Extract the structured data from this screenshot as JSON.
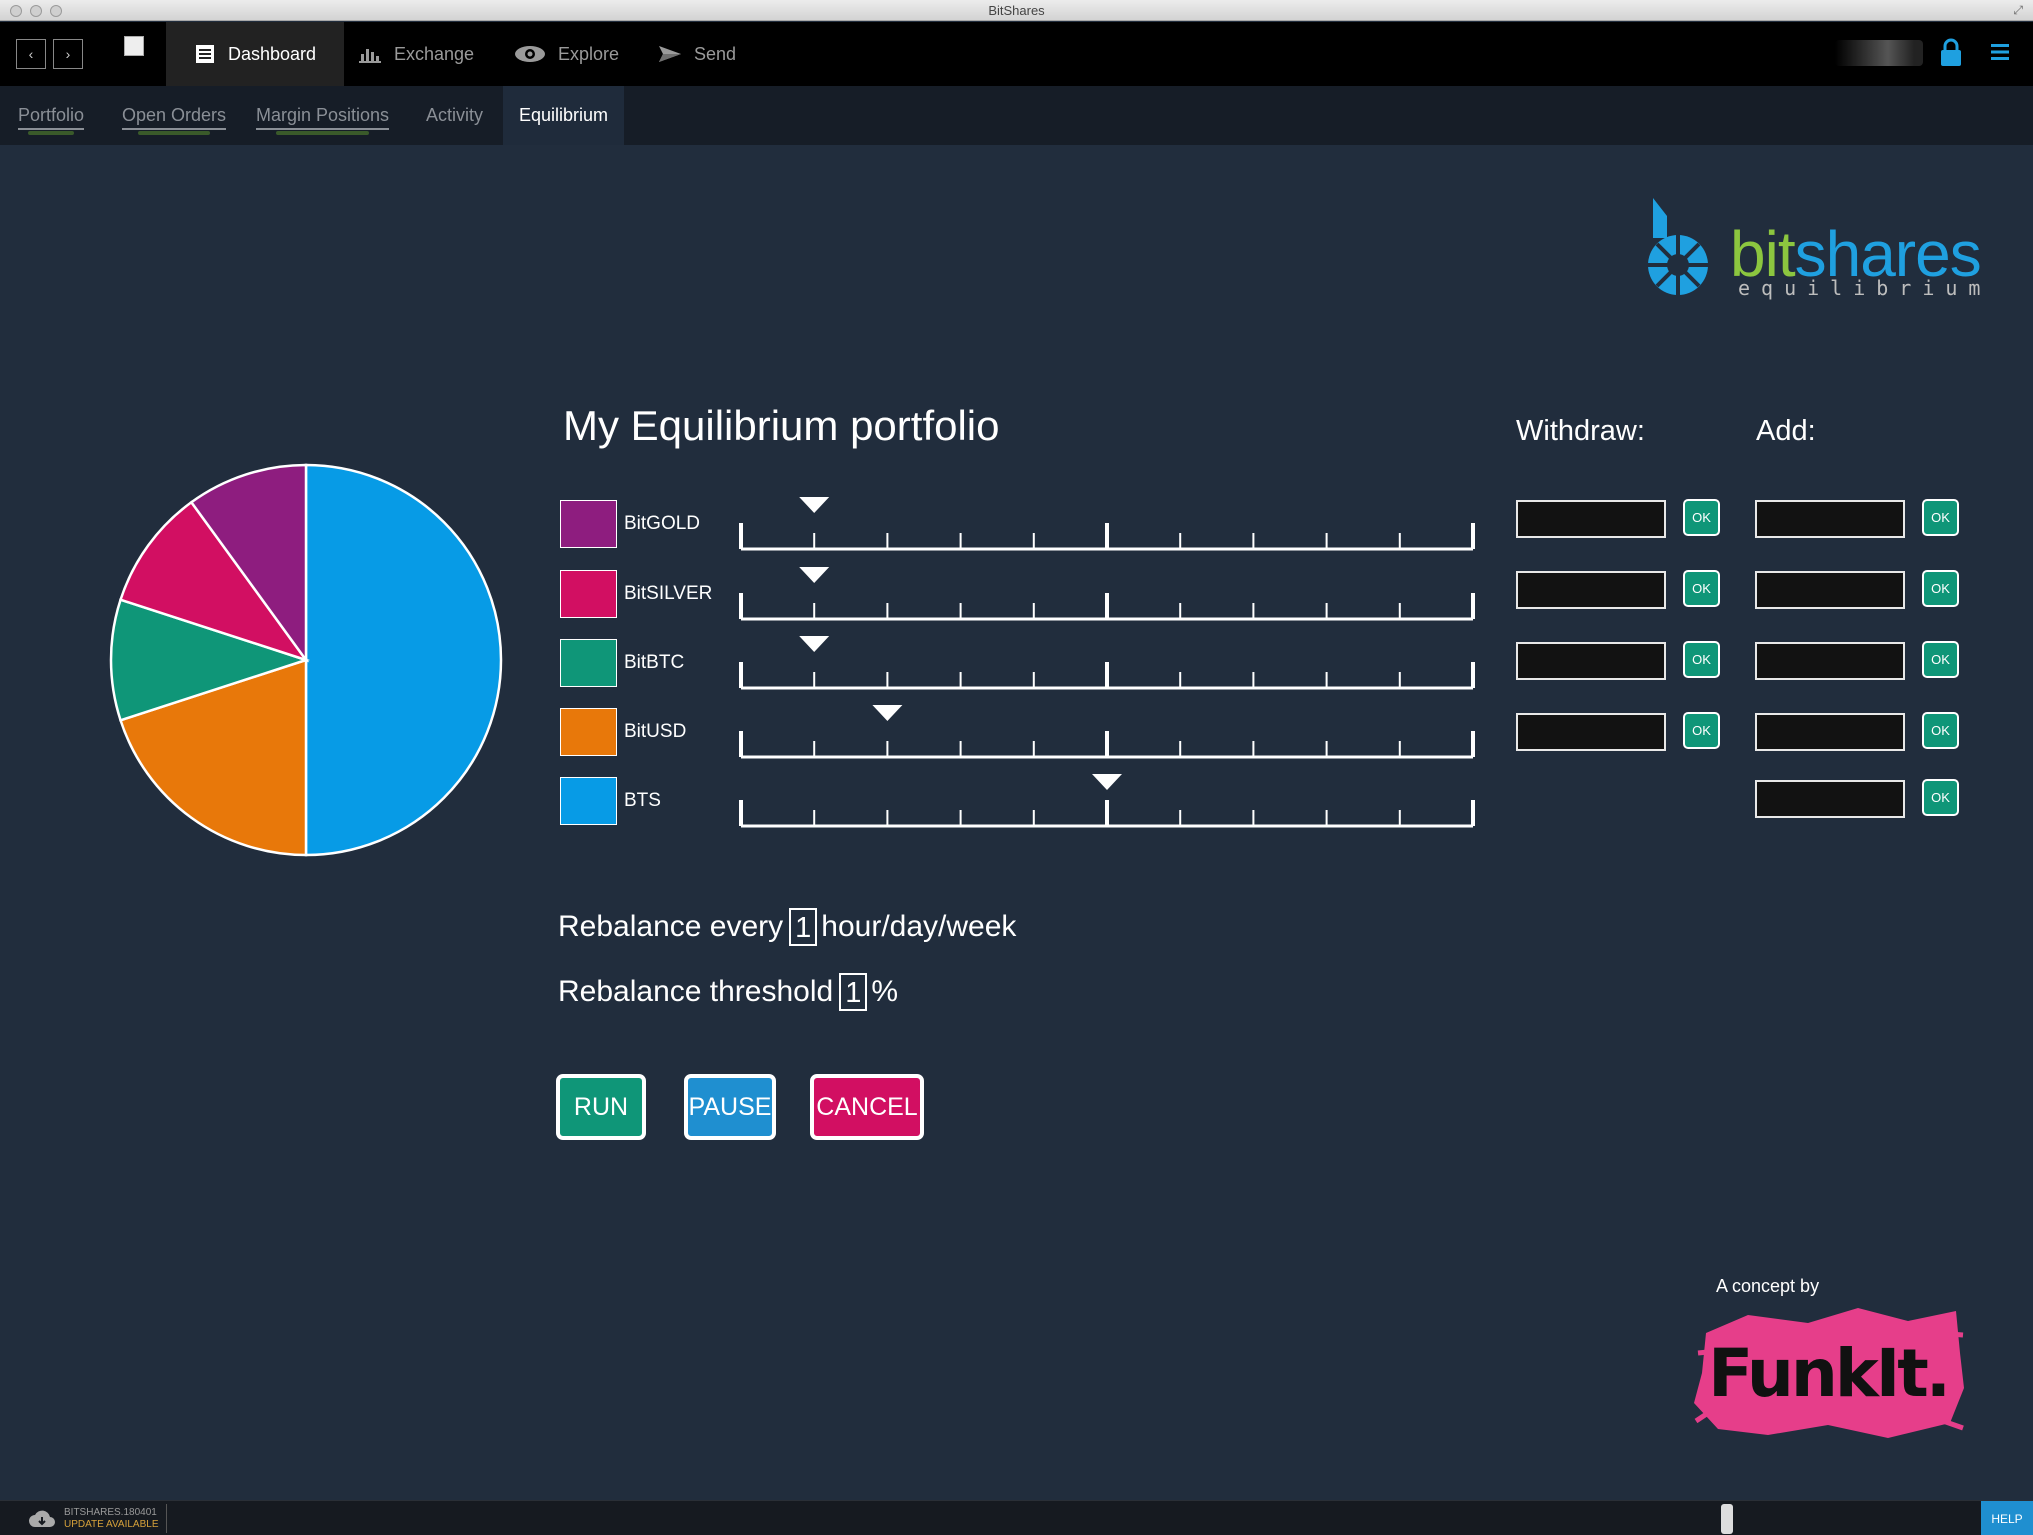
{
  "window": {
    "title": "BitShares"
  },
  "topnav": {
    "back_icon": "chevron-left-icon",
    "forward_icon": "chevron-right-icon",
    "back_label": "‹",
    "forward_label": "›",
    "tabs": [
      {
        "label": "Dashboard",
        "icon": "dashboard-icon",
        "active": true
      },
      {
        "label": "Exchange",
        "icon": "bar-chart-icon",
        "active": false
      },
      {
        "label": "Explore",
        "icon": "eye-icon",
        "active": false
      },
      {
        "label": "Send",
        "icon": "paper-plane-icon",
        "active": false
      }
    ],
    "lock_icon": "lock-icon",
    "menu_icon": "hamburger-menu-icon"
  },
  "subnav": {
    "tabs": [
      {
        "label": "Portfolio",
        "active": false
      },
      {
        "label": "Open Orders",
        "active": false
      },
      {
        "label": "Margin Positions",
        "active": false
      },
      {
        "label": "Activity",
        "active": false
      },
      {
        "label": "Equilibrium",
        "active": true
      }
    ]
  },
  "logo": {
    "brand_bit": "bit",
    "brand_shares": "shares",
    "tagline": "equilibrium"
  },
  "portfolio": {
    "title": "My Equilibrium portfolio",
    "withdraw_label": "Withdraw:",
    "add_label": "Add:",
    "ok_label": "OK",
    "assets": [
      {
        "name": "BitGOLD",
        "color": "#8e1d7f",
        "slider_value": 1,
        "withdraw": "",
        "add": "",
        "can_withdraw": true
      },
      {
        "name": "BitSILVER",
        "color": "#d20f62",
        "slider_value": 1,
        "withdraw": "",
        "add": "",
        "can_withdraw": true
      },
      {
        "name": "BitBTC",
        "color": "#0f9678",
        "slider_value": 1,
        "withdraw": "",
        "add": "",
        "can_withdraw": true
      },
      {
        "name": "BitUSD",
        "color": "#e8780a",
        "slider_value": 2,
        "withdraw": "",
        "add": "",
        "can_withdraw": true
      },
      {
        "name": "BTS",
        "color": "#079be6",
        "slider_value": 5,
        "withdraw": "",
        "add": "",
        "can_withdraw": false
      }
    ],
    "slider_ticks": 10
  },
  "rebalance": {
    "every_prefix": "Rebalance every",
    "every_value": "1",
    "every_suffix": "hour/day/week",
    "threshold_prefix": "Rebalance threshold",
    "threshold_value": "1",
    "threshold_suffix": "%"
  },
  "actions": {
    "run": {
      "label": "RUN",
      "color": "#0f9678"
    },
    "pause": {
      "label": "PAUSE",
      "color": "#1f8fd0"
    },
    "cancel": {
      "label": "CANCEL",
      "color": "#d20f62"
    }
  },
  "credit": {
    "concept_label": "A concept by",
    "brand": "FunkIt."
  },
  "footer": {
    "version": "BITSHARES.180401",
    "update": "UPDATE AVAILABLE",
    "help": "HELP",
    "cloud_icon": "cloud-download-icon"
  }
}
